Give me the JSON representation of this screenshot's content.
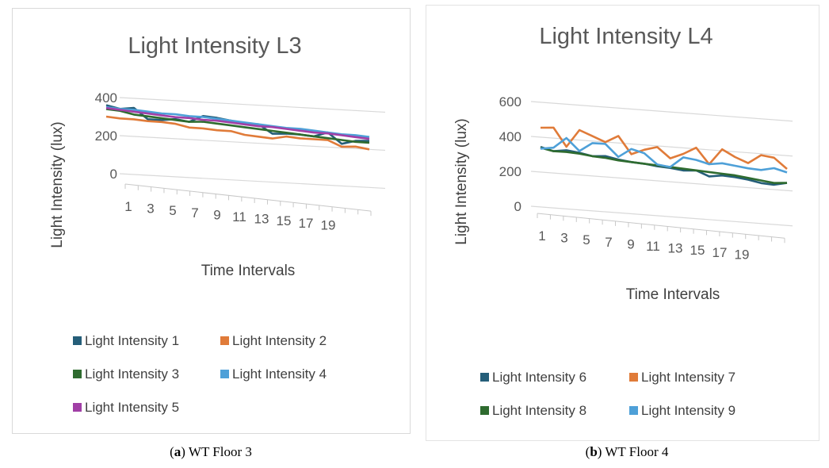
{
  "chart_data": [
    {
      "type": "line",
      "title": "Light Intensity L3",
      "xlabel": "Time Intervals",
      "ylabel": "Light Intensity (lux)",
      "ylim": [
        0,
        400
      ],
      "yticks": [
        "0",
        "200",
        "400"
      ],
      "x": [
        1,
        2,
        3,
        4,
        5,
        6,
        7,
        8,
        9,
        10,
        11,
        12,
        13,
        14,
        15,
        16,
        17,
        18,
        19,
        20
      ],
      "xtick_labels": [
        "1",
        "3",
        "5",
        "7",
        "9",
        "11",
        "13",
        "15",
        "17",
        "19"
      ],
      "legend_position": "bottom",
      "legend": [
        "Light Intensity 1",
        "Light Intensity 2",
        "Light Intensity 3",
        "Light Intensity 4",
        "Light Intensity 5"
      ],
      "series": [
        {
          "name": "Light Intensity 1",
          "color": "#255e79",
          "values": [
            360,
            345,
            355,
            300,
            300,
            310,
            300,
            335,
            330,
            320,
            305,
            310,
            265,
            270,
            270,
            265,
            290,
            235,
            255,
            260
          ]
        },
        {
          "name": "Light Intensity 2",
          "color": "#e07b39",
          "values": [
            300,
            295,
            295,
            290,
            290,
            285,
            270,
            270,
            265,
            265,
            250,
            245,
            240,
            255,
            250,
            250,
            250,
            220,
            225,
            215
          ]
        },
        {
          "name": "Light Intensity 3",
          "color": "#2e6b2f",
          "values": [
            340,
            335,
            320,
            315,
            310,
            305,
            300,
            305,
            300,
            295,
            290,
            285,
            280,
            275,
            270,
            265,
            260,
            255,
            250,
            250
          ]
        },
        {
          "name": "Light Intensity 4",
          "color": "#4ea0d8",
          "values": [
            350,
            345,
            345,
            340,
            335,
            335,
            330,
            330,
            325,
            320,
            315,
            310,
            305,
            300,
            300,
            295,
            290,
            285,
            285,
            280
          ]
        },
        {
          "name": "Light Intensity 5",
          "color": "#a13fa6",
          "values": [
            345,
            340,
            335,
            330,
            325,
            320,
            320,
            315,
            315,
            310,
            305,
            300,
            300,
            295,
            290,
            285,
            285,
            280,
            275,
            270
          ]
        }
      ]
    },
    {
      "type": "line",
      "title": "Light Intensity L4",
      "xlabel": "Time Intervals",
      "ylabel": "Light Intensity (lux)",
      "ylim": [
        0,
        600
      ],
      "yticks": [
        "0",
        "200",
        "400",
        "600"
      ],
      "x": [
        1,
        2,
        3,
        4,
        5,
        6,
        7,
        8,
        9,
        10,
        11,
        12,
        13,
        14,
        15,
        16,
        17,
        18,
        19,
        20
      ],
      "xtick_labels": [
        "1",
        "3",
        "5",
        "7",
        "9",
        "11",
        "13",
        "15",
        "17",
        "19"
      ],
      "legend_position": "bottom",
      "legend": [
        "Light Intensity 6",
        "Light Intensity 7",
        "Light Intensity 8",
        "Light Intensity 9"
      ],
      "series": [
        {
          "name": "Light Intensity 6",
          "color": "#255e79",
          "values": [
            340,
            320,
            330,
            320,
            305,
            310,
            295,
            285,
            280,
            270,
            265,
            255,
            260,
            230,
            240,
            235,
            225,
            210,
            205,
            220
          ]
        },
        {
          "name": "Light Intensity 7",
          "color": "#e07b39",
          "values": [
            450,
            455,
            350,
            450,
            420,
            390,
            430,
            330,
            360,
            380,
            320,
            350,
            390,
            300,
            390,
            350,
            320,
            370,
            360,
            300
          ]
        },
        {
          "name": "Light Intensity 8",
          "color": "#2e6b2f",
          "values": [
            335,
            320,
            320,
            315,
            305,
            300,
            290,
            285,
            280,
            275,
            270,
            265,
            260,
            255,
            250,
            245,
            235,
            225,
            215,
            220
          ]
        },
        {
          "name": "Light Intensity 9",
          "color": "#4ea0d8",
          "values": [
            330,
            340,
            400,
            330,
            380,
            380,
            310,
            360,
            340,
            280,
            270,
            330,
            320,
            300,
            310,
            300,
            290,
            285,
            300,
            280
          ]
        }
      ]
    }
  ],
  "captions": {
    "a": {
      "label": "a",
      "text": "WT Floor 3"
    },
    "b": {
      "label": "b",
      "text": "WT Floor 4"
    }
  }
}
